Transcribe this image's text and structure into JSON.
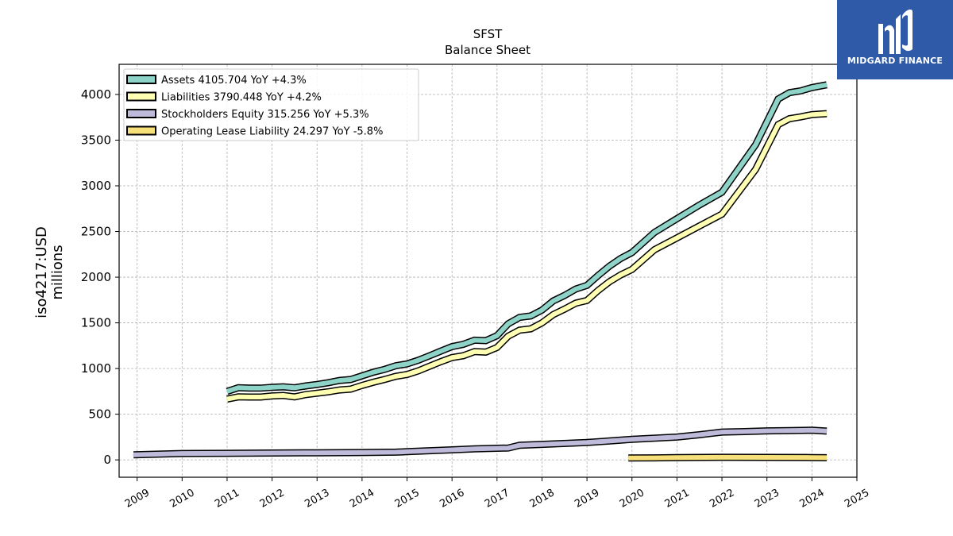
{
  "logo": {
    "text": "MIDGARD FINANCE",
    "color": "#2f5aa8"
  },
  "chart_data": {
    "type": "line",
    "title": "SFST",
    "subtitle": "Balance  Sheet",
    "ylabel_line1": "iso4217:USD",
    "ylabel_line2": "millions",
    "xlabel": "",
    "xlim": [
      2008.6,
      2025.0
    ],
    "ylim": [
      -190,
      4330
    ],
    "x_ticks": [
      2009,
      2010,
      2011,
      2012,
      2013,
      2014,
      2015,
      2016,
      2017,
      2018,
      2019,
      2020,
      2021,
      2022,
      2023,
      2024,
      2025
    ],
    "y_ticks": [
      0,
      500,
      1000,
      1500,
      2000,
      2500,
      3000,
      3500,
      4000
    ],
    "grid": true,
    "legend_position": "top-left",
    "series": [
      {
        "name": "Assets",
        "legend": "Assets  4105.704 YoY +4.3%",
        "color": "#8dd3c7",
        "points": [
          [
            2011.0,
            750
          ],
          [
            2011.25,
            790
          ],
          [
            2011.5,
            785
          ],
          [
            2011.75,
            785
          ],
          [
            2012.0,
            795
          ],
          [
            2012.25,
            800
          ],
          [
            2012.5,
            790
          ],
          [
            2012.75,
            810
          ],
          [
            2013.0,
            825
          ],
          [
            2013.25,
            845
          ],
          [
            2013.5,
            870
          ],
          [
            2013.75,
            880
          ],
          [
            2014.0,
            920
          ],
          [
            2014.25,
            960
          ],
          [
            2014.5,
            990
          ],
          [
            2014.75,
            1030
          ],
          [
            2015.0,
            1050
          ],
          [
            2015.25,
            1090
          ],
          [
            2015.5,
            1140
          ],
          [
            2015.75,
            1190
          ],
          [
            2016.0,
            1240
          ],
          [
            2016.25,
            1265
          ],
          [
            2016.5,
            1310
          ],
          [
            2016.75,
            1305
          ],
          [
            2017.0,
            1360
          ],
          [
            2017.25,
            1490
          ],
          [
            2017.5,
            1560
          ],
          [
            2017.75,
            1575
          ],
          [
            2018.0,
            1640
          ],
          [
            2018.25,
            1740
          ],
          [
            2018.5,
            1800
          ],
          [
            2018.75,
            1870
          ],
          [
            2019.0,
            1910
          ],
          [
            2019.25,
            2020
          ],
          [
            2019.5,
            2120
          ],
          [
            2019.75,
            2205
          ],
          [
            2020.0,
            2270
          ],
          [
            2020.5,
            2490
          ],
          [
            2021.0,
            2640
          ],
          [
            2021.5,
            2790
          ],
          [
            2022.0,
            2930
          ],
          [
            2022.75,
            3450
          ],
          [
            2023.25,
            3950
          ],
          [
            2023.5,
            4020
          ],
          [
            2023.75,
            4040
          ],
          [
            2024.0,
            4075
          ],
          [
            2024.33,
            4106
          ]
        ]
      },
      {
        "name": "Liabilities",
        "legend": "Liabilities  3790.448 YoY +4.2%",
        "color": "#ffffb3",
        "points": [
          [
            2011.0,
            665
          ],
          [
            2011.25,
            690
          ],
          [
            2011.5,
            688
          ],
          [
            2011.75,
            688
          ],
          [
            2012.0,
            700
          ],
          [
            2012.25,
            705
          ],
          [
            2012.5,
            690
          ],
          [
            2012.75,
            715
          ],
          [
            2013.0,
            730
          ],
          [
            2013.25,
            745
          ],
          [
            2013.5,
            765
          ],
          [
            2013.75,
            775
          ],
          [
            2014.0,
            815
          ],
          [
            2014.25,
            850
          ],
          [
            2014.5,
            880
          ],
          [
            2014.75,
            915
          ],
          [
            2015.0,
            935
          ],
          [
            2015.25,
            975
          ],
          [
            2015.5,
            1025
          ],
          [
            2015.75,
            1075
          ],
          [
            2016.0,
            1120
          ],
          [
            2016.25,
            1140
          ],
          [
            2016.5,
            1185
          ],
          [
            2016.75,
            1180
          ],
          [
            2017.0,
            1230
          ],
          [
            2017.25,
            1355
          ],
          [
            2017.5,
            1420
          ],
          [
            2017.75,
            1435
          ],
          [
            2018.0,
            1500
          ],
          [
            2018.25,
            1590
          ],
          [
            2018.5,
            1650
          ],
          [
            2018.75,
            1715
          ],
          [
            2019.0,
            1745
          ],
          [
            2019.25,
            1855
          ],
          [
            2019.5,
            1950
          ],
          [
            2019.75,
            2025
          ],
          [
            2020.0,
            2085
          ],
          [
            2020.5,
            2300
          ],
          [
            2021.0,
            2430
          ],
          [
            2021.5,
            2560
          ],
          [
            2022.0,
            2690
          ],
          [
            2022.75,
            3180
          ],
          [
            2023.25,
            3670
          ],
          [
            2023.5,
            3735
          ],
          [
            2023.75,
            3755
          ],
          [
            2024.0,
            3780
          ],
          [
            2024.33,
            3790
          ]
        ]
      },
      {
        "name": "Stockholders Equity",
        "legend": "Stockholders Equity  315.256 YoY +5.3%",
        "color": "#bebada",
        "points": [
          [
            2008.92,
            55
          ],
          [
            2010.0,
            70
          ],
          [
            2011.0,
            72
          ],
          [
            2012.0,
            75
          ],
          [
            2013.0,
            78
          ],
          [
            2014.0,
            80
          ],
          [
            2014.75,
            85
          ],
          [
            2015.0,
            90
          ],
          [
            2016.0,
            110
          ],
          [
            2016.5,
            120
          ],
          [
            2017.25,
            130
          ],
          [
            2017.5,
            160
          ],
          [
            2018.0,
            170
          ],
          [
            2019.0,
            190
          ],
          [
            2020.0,
            225
          ],
          [
            2021.0,
            250
          ],
          [
            2021.5,
            275
          ],
          [
            2022.0,
            305
          ],
          [
            2022.5,
            310
          ],
          [
            2023.0,
            318
          ],
          [
            2023.5,
            320
          ],
          [
            2024.0,
            325
          ],
          [
            2024.33,
            315
          ]
        ]
      },
      {
        "name": "Operating Lease Liability",
        "legend": "Operating Lease Liability  24.297 YoY -5.8%",
        "color": "#f7e07a",
        "points": [
          [
            2019.92,
            20
          ],
          [
            2020.5,
            22
          ],
          [
            2021.0,
            25
          ],
          [
            2022.0,
            28
          ],
          [
            2023.0,
            27
          ],
          [
            2024.0,
            26
          ],
          [
            2024.33,
            24
          ]
        ]
      }
    ]
  }
}
